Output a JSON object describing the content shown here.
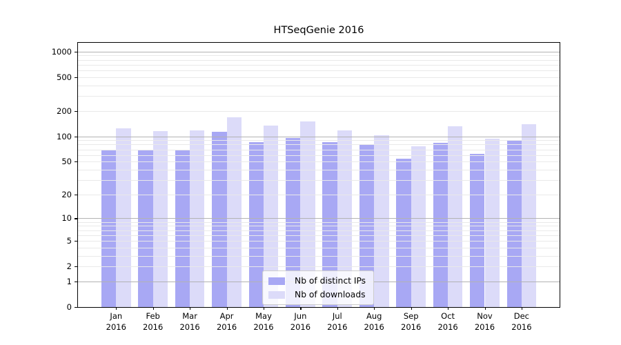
{
  "chart_data": {
    "type": "bar",
    "title": "HTSeqGenie 2016",
    "x_year": "2016",
    "categories": [
      "Jan",
      "Feb",
      "Mar",
      "Apr",
      "May",
      "Jun",
      "Jul",
      "Aug",
      "Sep",
      "Oct",
      "Nov",
      "Dec"
    ],
    "series": [
      {
        "name": "Nb of distinct IPs",
        "color": "#a8a8f4",
        "values": [
          68,
          68,
          70,
          113,
          86,
          95,
          85,
          80,
          54,
          83,
          62,
          88
        ]
      },
      {
        "name": "Nb of downloads",
        "color": "#dcdbf9",
        "values": [
          125,
          116,
          117,
          168,
          133,
          150,
          117,
          104,
          76,
          131,
          93,
          140
        ]
      }
    ],
    "yscale": "log1p",
    "ylim": [
      0,
      1000
    ],
    "y_ticks": [
      0,
      1,
      2,
      5,
      10,
      20,
      50,
      100,
      200,
      500,
      1000
    ],
    "grid": {
      "on": true,
      "major_values": [
        1,
        10,
        100,
        1000
      ],
      "minor_per_decade": [
        2,
        3,
        4,
        5,
        6,
        7,
        8,
        9
      ],
      "major_color": "#b2b2b2",
      "minor_color": "#e9e9e9"
    },
    "legend": {
      "location": "lower center"
    }
  }
}
